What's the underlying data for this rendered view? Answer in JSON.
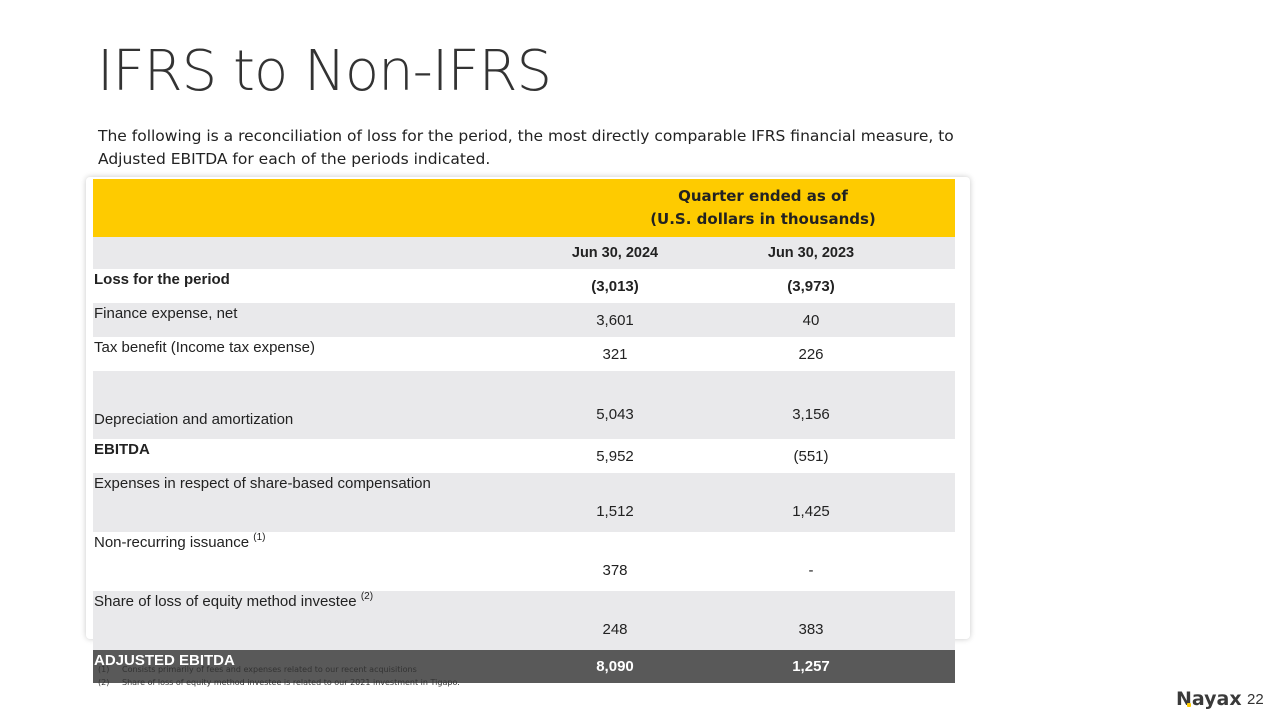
{
  "slide": {
    "title": "IFRS to Non-IFRS",
    "intro": "The following is a reconciliation of loss for the period, the most directly comparable IFRS financial measure, to Adjusted EBITDA for each of the periods indicated.",
    "page_number": "22",
    "logo_text": "Nayax"
  },
  "table": {
    "header_line1": "Quarter ended as of",
    "header_line2": "(U.S. dollars in thousands)",
    "columns": [
      "Jun 30, 2024",
      "Jun 30, 2023"
    ],
    "rows": [
      {
        "label": "Loss for the period",
        "sup": "",
        "v1": "(3,013)",
        "v2": "(3,973)"
      },
      {
        "label": "Finance expense, net",
        "sup": "",
        "v1": "3,601",
        "v2": "40"
      },
      {
        "label": "Tax benefit (Income tax expense)",
        "sup": "",
        "v1": "321",
        "v2": "226"
      },
      {
        "label": "Depreciation and amortization",
        "sup": "",
        "v1": "5,043",
        "v2": "3,156"
      },
      {
        "label": "EBITDA",
        "sup": "",
        "v1": "5,952",
        "v2": "(551)"
      },
      {
        "label": "Expenses in respect of share-based compensation",
        "sup": "",
        "v1": "1,512",
        "v2": "1,425"
      },
      {
        "label": "Non-recurring issuance ",
        "sup": "(1)",
        "v1": "378",
        "v2": "-"
      },
      {
        "label": "Share of loss of equity method investee ",
        "sup": "(2)",
        "v1": "248",
        "v2": "383"
      },
      {
        "label": "ADJUSTED EBITDA",
        "sup": "",
        "v1": "8,090",
        "v2": "1,257"
      }
    ]
  },
  "footnotes": [
    {
      "num": "(1)",
      "text": "Consists primarily of fees and expenses related to our recent acquisitions"
    },
    {
      "num": "(2)",
      "text": "Share of loss of equity method investee is related to our 2021 investment in Tigapo."
    }
  ],
  "colors": {
    "accent": "#fecb00",
    "row_grey": "#e9e9eb",
    "total_row": "#595959"
  }
}
